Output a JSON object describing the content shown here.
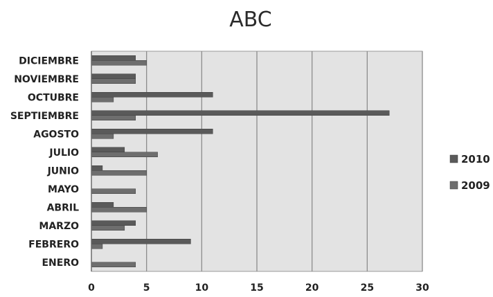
{
  "chart_data": {
    "type": "bar",
    "orientation": "horizontal",
    "title": "ABC",
    "categories": [
      "ENERO",
      "FEBRERO",
      "MARZO",
      "ABRIL",
      "MAYO",
      "JUNIO",
      "JULIO",
      "AGOSTO",
      "SEPTIEMBRE",
      "OCTUBRE",
      "NOVIEMBRE",
      "DICIEMBRE"
    ],
    "series": [
      {
        "name": "2010",
        "color": "#5a5a5a",
        "values": [
          0,
          9,
          4,
          2,
          0,
          1,
          3,
          11,
          27,
          11,
          4,
          4
        ]
      },
      {
        "name": "2009",
        "color": "#6e6e6e",
        "values": [
          4,
          1,
          3,
          5,
          4,
          5,
          6,
          2,
          4,
          2,
          4,
          5
        ]
      }
    ],
    "xlim": [
      0,
      30
    ],
    "xticks": [
      "0",
      "5",
      "10",
      "15",
      "20",
      "25",
      "30"
    ],
    "grid": true,
    "plot_background": "#e3e3e3",
    "legend_position": "right"
  }
}
